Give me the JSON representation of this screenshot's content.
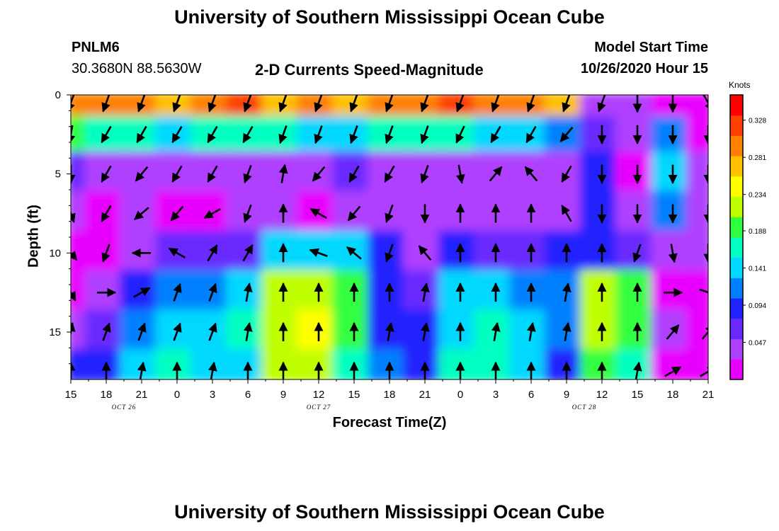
{
  "header": {
    "title": "University of Southern Mississippi Ocean Cube",
    "station_id": "PNLM6",
    "station_coords": "30.3680N 88.5630W",
    "plot_title": "2-D Currents Speed-Magnitude",
    "model_start_label": "Model Start Time",
    "model_start_value": "10/26/2020 Hour 15"
  },
  "footer": {
    "title": "University of Southern Mississippi Ocean Cube"
  },
  "colors": {
    "palette": [
      "#e800ff",
      "#b040ff",
      "#6a2aff",
      "#2222ff",
      "#0080ff",
      "#00d8ff",
      "#00ffc0",
      "#30ff40",
      "#c0ff00",
      "#ffff00",
      "#ffc000",
      "#ff8000",
      "#ff4000",
      "#ff0000"
    ]
  },
  "chart_data": {
    "type": "heatmap",
    "title": "2-D Currents Speed-Magnitude",
    "xlabel": "Forecast Time(Z)",
    "ylabel": "Depth (ft)",
    "colorbar_label": "Knots",
    "xlim": [
      0,
      54
    ],
    "ylim": [
      0,
      18
    ],
    "x_tick_labels": [
      "15",
      "18",
      "21",
      "0",
      "3",
      "6",
      "9",
      "12",
      "15",
      "18",
      "21",
      "0",
      "3",
      "6",
      "9",
      "12",
      "15",
      "18",
      "21"
    ],
    "y_ticks": [
      0,
      5,
      10,
      15
    ],
    "y_tick_labels": [
      "0",
      "5",
      "10",
      "15"
    ],
    "date_labels": [
      {
        "label": "OCT 26",
        "hour": 4.5
      },
      {
        "label": "OCT 27",
        "hour": 21
      },
      {
        "label": "OCT 28",
        "hour": 43.5
      }
    ],
    "colorbar_range": [
      0,
      0.36
    ],
    "colorbar_ticks": [
      "0.047",
      "0.094",
      "0.141",
      "0.188",
      "0.234",
      "0.281",
      "0.328"
    ],
    "colorbar_tick_values": [
      0.047,
      0.094,
      0.141,
      0.188,
      0.234,
      0.281,
      0.328
    ],
    "hours": [
      0,
      3,
      6,
      9,
      12,
      15,
      18,
      21,
      24,
      27,
      30,
      33,
      36,
      39,
      42,
      45,
      48,
      51,
      54
    ],
    "depth_levels": [
      0.5,
      2.5,
      5.0,
      7.5,
      10.0,
      12.5,
      15.0,
      17.5
    ],
    "speed_knots": [
      [
        0.3,
        0.29,
        0.3,
        0.28,
        0.3,
        0.31,
        0.28,
        0.29,
        0.28,
        0.29,
        0.3,
        0.31,
        0.3,
        0.29,
        0.27,
        0.05,
        0.03,
        0.02,
        0.01
      ],
      [
        0.18,
        0.16,
        0.17,
        0.15,
        0.16,
        0.17,
        0.16,
        0.15,
        0.15,
        0.16,
        0.17,
        0.16,
        0.15,
        0.14,
        0.12,
        0.06,
        0.03,
        0.12,
        0.02
      ],
      [
        0.07,
        0.05,
        0.04,
        0.03,
        0.04,
        0.03,
        0.05,
        0.03,
        0.06,
        0.04,
        0.05,
        0.03,
        0.04,
        0.04,
        0.04,
        0.08,
        0.02,
        0.15,
        0.05
      ],
      [
        0.04,
        0.02,
        0.03,
        0.02,
        0.02,
        0.03,
        0.03,
        0.02,
        0.03,
        0.03,
        0.03,
        0.03,
        0.03,
        0.03,
        0.03,
        0.09,
        0.03,
        0.12,
        0.04
      ],
      [
        0.02,
        0.02,
        0.03,
        0.07,
        0.06,
        0.06,
        0.14,
        0.14,
        0.13,
        0.08,
        0.05,
        0.08,
        0.07,
        0.06,
        0.08,
        0.1,
        0.07,
        0.03,
        0.03
      ],
      [
        0.02,
        0.05,
        0.1,
        0.12,
        0.11,
        0.13,
        0.22,
        0.23,
        0.18,
        0.09,
        0.06,
        0.13,
        0.15,
        0.12,
        0.11,
        0.21,
        0.18,
        0.02,
        0.02
      ],
      [
        0.05,
        0.07,
        0.12,
        0.15,
        0.13,
        0.16,
        0.23,
        0.24,
        0.19,
        0.1,
        0.08,
        0.15,
        0.17,
        0.14,
        0.12,
        0.23,
        0.19,
        0.03,
        0.02
      ],
      [
        0.09,
        0.1,
        0.14,
        0.16,
        0.14,
        0.15,
        0.22,
        0.21,
        0.17,
        0.11,
        0.09,
        0.16,
        0.17,
        0.13,
        0.1,
        0.2,
        0.16,
        0.02,
        0.01
      ]
    ],
    "current_direction_deg": [
      [
        200,
        200,
        200,
        200,
        200,
        200,
        200,
        200,
        200,
        200,
        200,
        200,
        200,
        200,
        200,
        200,
        180,
        180,
        150
      ],
      [
        190,
        210,
        210,
        210,
        210,
        210,
        200,
        200,
        200,
        200,
        200,
        205,
        210,
        210,
        220,
        180,
        180,
        180,
        180
      ],
      [
        180,
        210,
        220,
        210,
        210,
        200,
        10,
        220,
        210,
        210,
        200,
        170,
        40,
        320,
        210,
        180,
        180,
        180,
        180
      ],
      [
        160,
        210,
        230,
        220,
        240,
        200,
        0,
        300,
        220,
        200,
        180,
        0,
        0,
        0,
        330,
        180,
        180,
        180,
        180
      ],
      [
        140,
        200,
        270,
        300,
        30,
        30,
        0,
        290,
        310,
        200,
        320,
        0,
        0,
        0,
        0,
        0,
        200,
        170,
        180
      ],
      [
        150,
        90,
        60,
        20,
        20,
        10,
        0,
        0,
        0,
        0,
        10,
        0,
        0,
        0,
        10,
        0,
        0,
        90,
        110
      ],
      [
        10,
        20,
        20,
        20,
        20,
        10,
        0,
        0,
        0,
        10,
        10,
        0,
        10,
        10,
        10,
        0,
        0,
        40,
        40
      ],
      [
        0,
        0,
        10,
        0,
        10,
        0,
        0,
        0,
        0,
        0,
        0,
        0,
        0,
        0,
        0,
        0,
        10,
        60,
        60
      ]
    ]
  }
}
